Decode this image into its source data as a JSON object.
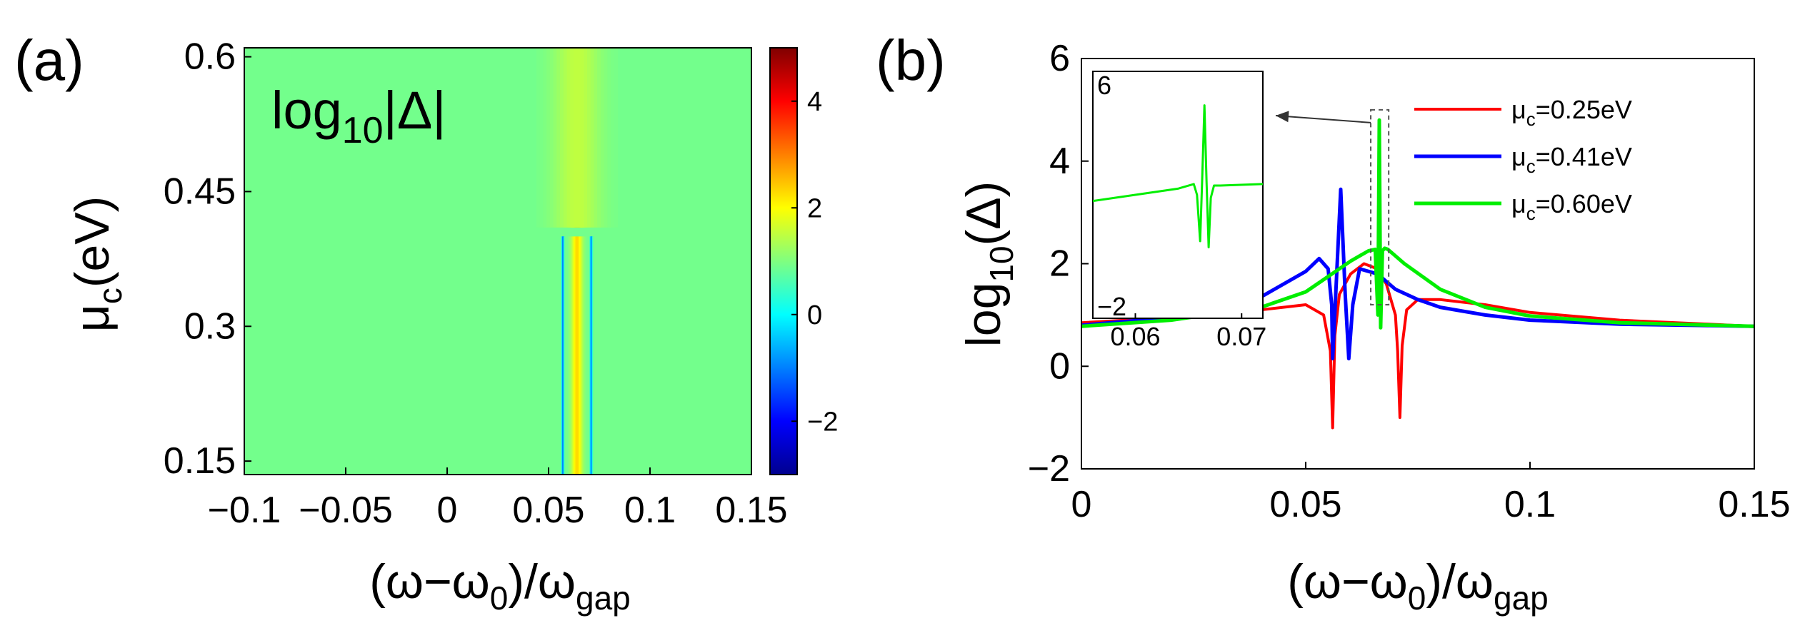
{
  "chart_data": [
    {
      "panel": "(a)",
      "type": "heatmap",
      "title": "log10|Δ|",
      "title_main": "log",
      "title_sub": "10",
      "title_rest": "|Δ|",
      "xlabel_parts": {
        "main": "(ω−ω",
        "sub0": "0",
        "mid": ")/ω",
        "sub1": "gap"
      },
      "ylabel_parts": {
        "main": "μ",
        "sub": "c",
        "rest": "(eV)"
      },
      "xlim": [
        -0.1,
        0.15
      ],
      "ylim": [
        0.135,
        0.61
      ],
      "xticks": [
        -0.1,
        -0.05,
        0,
        0.05,
        0.1,
        0.15
      ],
      "xtick_labels": [
        "−0.1",
        "−0.05",
        "0",
        "0.05",
        "0.1",
        "0.15"
      ],
      "yticks": [
        0.15,
        0.3,
        0.45,
        0.6
      ],
      "ytick_labels": [
        "0.15",
        "0.3",
        "0.45",
        "0.6"
      ],
      "colorbar": {
        "range": [
          -3,
          5
        ],
        "ticks": [
          -2,
          0,
          2,
          4
        ],
        "tick_labels": [
          "−2",
          "0",
          "2",
          "4"
        ],
        "colormap": "jet"
      },
      "background_value": 0.9,
      "features": [
        {
          "name": "upper ridge",
          "mu_range": [
            0.41,
            0.61
          ],
          "x_center": 0.064,
          "width": 0.011,
          "peak": 2.6
        },
        {
          "name": "upper halo",
          "mu_range": [
            0.41,
            0.61
          ],
          "x_center": 0.064,
          "width": 0.04,
          "peak": 1.5
        },
        {
          "name": "lower ridge",
          "mu_range": [
            0.135,
            0.4
          ],
          "x_center": 0.064,
          "width": 0.009,
          "peak": 2.3
        },
        {
          "name": "dip left",
          "mu_range": [
            0.135,
            0.4
          ],
          "x_center": 0.057,
          "width": 0.002,
          "peak": -1.1
        },
        {
          "name": "dip right",
          "mu_range": [
            0.135,
            0.4
          ],
          "x_center": 0.071,
          "width": 0.002,
          "peak": -1.0
        }
      ]
    },
    {
      "panel": "(b)",
      "type": "line",
      "ylabel_parts": {
        "main": "log",
        "sub": "10",
        "rest": "(Δ)"
      },
      "xlabel_parts": {
        "main": "(ω−ω",
        "sub0": "0",
        "mid": ")/ω",
        "sub1": "gap"
      },
      "xlim": [
        0,
        0.15
      ],
      "ylim": [
        -2,
        6
      ],
      "xticks": [
        0,
        0.05,
        0.1,
        0.15
      ],
      "xtick_labels": [
        "0",
        "0.05",
        "0.1",
        "0.15"
      ],
      "yticks": [
        -2,
        0,
        2,
        4,
        6
      ],
      "ytick_labels": [
        "−2",
        "0",
        "2",
        "4",
        "6"
      ],
      "legend_position": "top-right",
      "series": [
        {
          "name": "μc=0.25eV",
          "label_main": "μ",
          "label_sub": "c",
          "label_rest": "=0.25eV",
          "color": "#ff0000",
          "x": [
            0,
            0.02,
            0.04,
            0.05,
            0.054,
            0.0555,
            0.056,
            0.0565,
            0.0575,
            0.06,
            0.063,
            0.066,
            0.068,
            0.07,
            0.0705,
            0.071,
            0.0715,
            0.0725,
            0.075,
            0.08,
            0.09,
            0.1,
            0.12,
            0.15
          ],
          "y": [
            0.85,
            0.95,
            1.1,
            1.2,
            1.0,
            0.3,
            -1.2,
            0.6,
            1.4,
            1.8,
            2.0,
            1.9,
            1.6,
            1.0,
            0.3,
            -1.0,
            0.4,
            1.1,
            1.3,
            1.3,
            1.2,
            1.05,
            0.9,
            0.78
          ]
        },
        {
          "name": "μc=0.41eV",
          "label_main": "μ",
          "label_sub": "c",
          "label_rest": "=0.41eV",
          "color": "#0000ff",
          "x": [
            0,
            0.02,
            0.04,
            0.05,
            0.053,
            0.055,
            0.0558,
            0.056,
            0.0568,
            0.0578,
            0.0588,
            0.0596,
            0.0605,
            0.062,
            0.066,
            0.07,
            0.075,
            0.08,
            0.09,
            0.1,
            0.12,
            0.15
          ],
          "y": [
            0.8,
            0.95,
            1.35,
            1.85,
            2.1,
            1.9,
            1.2,
            0.15,
            1.6,
            3.45,
            1.4,
            0.15,
            1.2,
            1.9,
            1.8,
            1.5,
            1.3,
            1.15,
            1.0,
            0.9,
            0.82,
            0.78
          ]
        },
        {
          "name": "μc=0.60eV",
          "label_main": "μ",
          "label_sub": "c",
          "label_rest": "=0.60eV",
          "color": "#00ee00",
          "x": [
            0,
            0.02,
            0.04,
            0.05,
            0.055,
            0.06,
            0.064,
            0.0655,
            0.0661,
            0.0664,
            0.0667,
            0.0671,
            0.0676,
            0.0683,
            0.072,
            0.08,
            0.09,
            0.1,
            0.12,
            0.15
          ],
          "y": [
            0.78,
            0.9,
            1.15,
            1.45,
            1.75,
            2.05,
            2.25,
            2.28,
            1.0,
            4.8,
            0.75,
            2.25,
            2.3,
            2.28,
            2.0,
            1.5,
            1.15,
            0.98,
            0.85,
            0.78
          ]
        }
      ],
      "highlight_box": {
        "x": [
          0.0645,
          0.0685
        ],
        "y": [
          1.2,
          5.0
        ]
      },
      "inset": {
        "xlim": [
          0.056,
          0.072
        ],
        "ylim": [
          -2,
          6
        ],
        "xtick_labels": [
          "0.06",
          "0.07"
        ],
        "xticks": [
          0.06,
          0.07
        ],
        "ytick_labels": [
          "−2",
          "6"
        ],
        "yticks": [
          -2,
          6
        ],
        "series": [
          {
            "color": "#00ee00",
            "x": [
              0.056,
              0.06,
              0.064,
              0.0655,
              0.0658,
              0.0661,
              0.0663,
              0.0665,
              0.0667,
              0.0669,
              0.0671,
              0.0674,
              0.068,
              0.072
            ],
            "y": [
              1.8,
              2.0,
              2.2,
              2.35,
              2.0,
              0.5,
              2.6,
              4.9,
              2.4,
              0.3,
              1.9,
              2.3,
              2.3,
              2.35
            ]
          }
        ]
      }
    }
  ]
}
